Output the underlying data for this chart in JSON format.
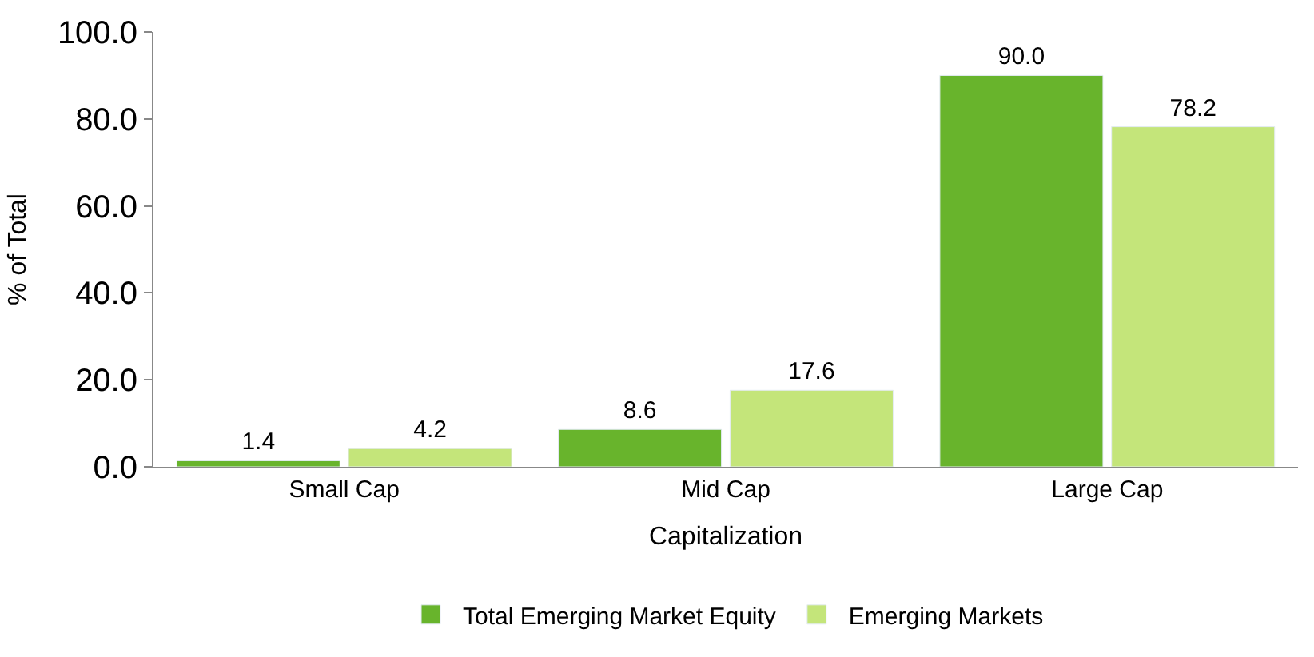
{
  "chart_data": {
    "type": "bar",
    "xlabel": "Capitalization",
    "ylabel": "% of Total",
    "categories": [
      "Small Cap",
      "Mid Cap",
      "Large Cap"
    ],
    "series": [
      {
        "name": "Total Emerging Market Equity",
        "color": "#68b42c",
        "values": [
          1.4,
          8.6,
          90.0
        ],
        "value_labels": [
          "1.4",
          "8.6",
          "90.0"
        ]
      },
      {
        "name": "Emerging Markets",
        "color": "#c4e57a",
        "values": [
          4.2,
          17.6,
          78.2
        ],
        "value_labels": [
          "4.2",
          "17.6",
          "78.2"
        ]
      }
    ],
    "ylim": [
      0,
      100
    ],
    "yticks": [
      {
        "value": 0,
        "label": "0.0"
      },
      {
        "value": 20,
        "label": "20.0"
      },
      {
        "value": 40,
        "label": "40.0"
      },
      {
        "value": 60,
        "label": "60.0"
      },
      {
        "value": 80,
        "label": "80.0"
      },
      {
        "value": 100,
        "label": "100.0"
      }
    ],
    "legend": "bottom"
  }
}
